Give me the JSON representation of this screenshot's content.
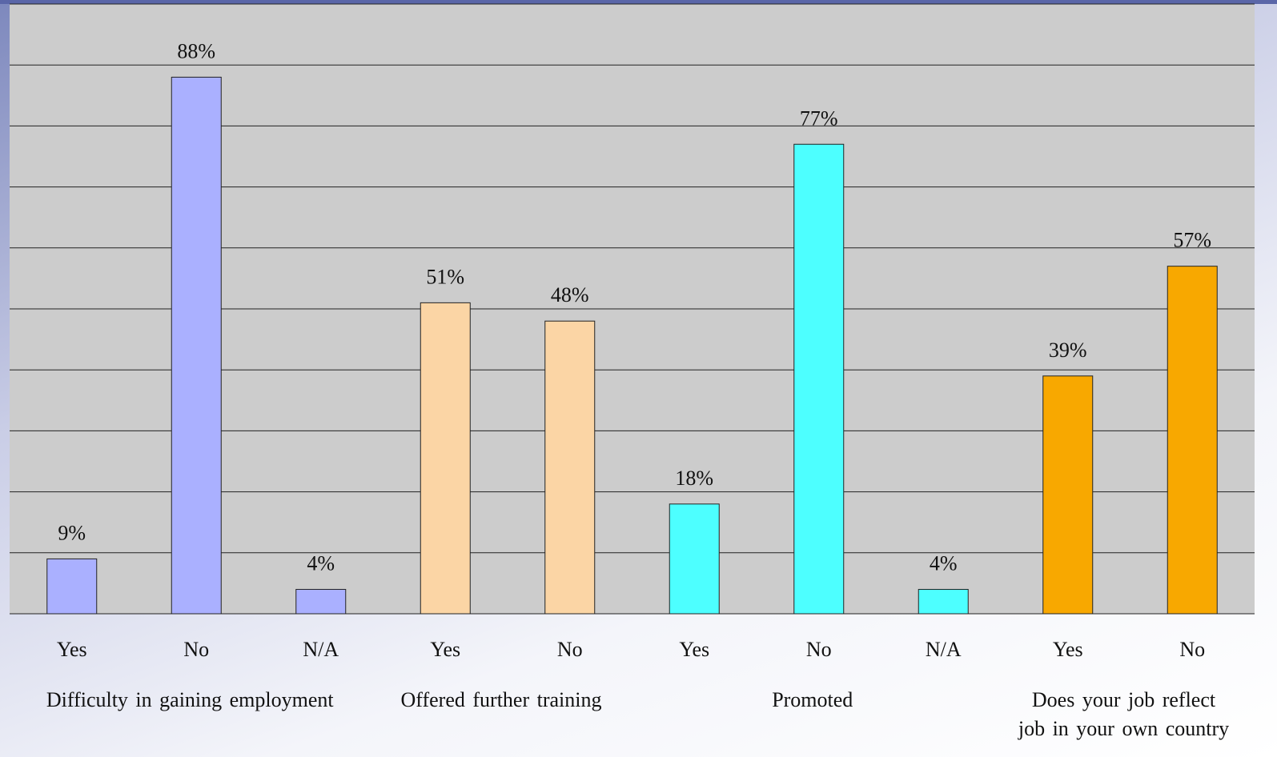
{
  "chart_data": {
    "type": "bar",
    "ylim": [
      0,
      100
    ],
    "yticks": [
      0,
      10,
      20,
      30,
      40,
      50,
      60,
      70,
      80,
      90,
      100
    ],
    "grid": true,
    "groups": [
      {
        "label": [
          "Difficulty in gaining employment"
        ],
        "color": "#aab0ff",
        "categories": [
          "Yes",
          "No",
          "N/A"
        ],
        "values": [
          9,
          88,
          4
        ],
        "value_labels": [
          "9%",
          "88%",
          "4%"
        ]
      },
      {
        "label": [
          "Offered further training"
        ],
        "color": "#fbd5a5",
        "categories": [
          "Yes",
          "No"
        ],
        "values": [
          51,
          48
        ],
        "value_labels": [
          "51%",
          "48%"
        ]
      },
      {
        "label": [
          "Promoted"
        ],
        "color": "#4dffff",
        "categories": [
          "Yes",
          "No",
          "N/A"
        ],
        "values": [
          18,
          77,
          4
        ],
        "value_labels": [
          "18%",
          "77%",
          "4%"
        ]
      },
      {
        "label": [
          "Does your job reflect",
          "job in your own country"
        ],
        "color": "#f8a800",
        "categories": [
          "Yes",
          "No"
        ],
        "values": [
          39,
          57
        ],
        "value_labels": [
          "39%",
          "57%"
        ]
      }
    ]
  }
}
